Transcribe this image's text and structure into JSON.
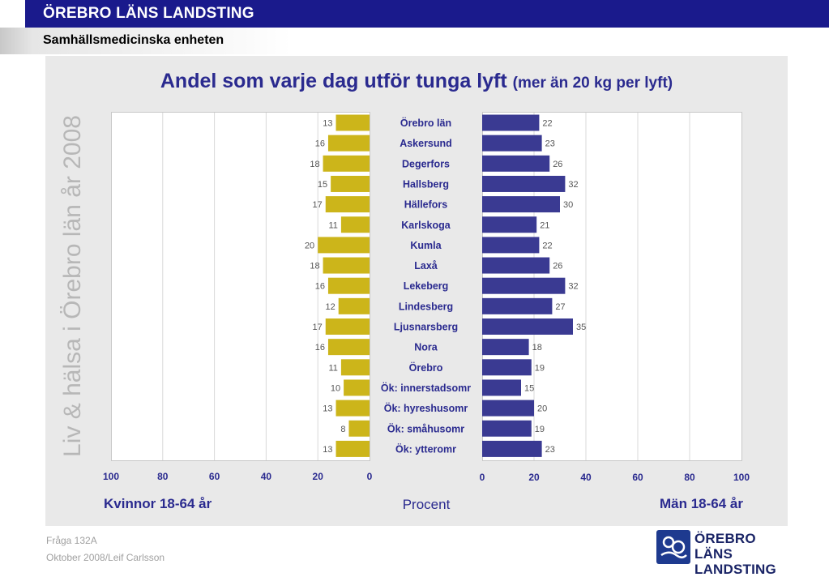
{
  "header": {
    "title": "ÖREBRO LÄNS LANDSTING",
    "subtitle": "Samhällsmedicinska enheten"
  },
  "side_label": "Liv & hälsa i Örebro län år 2008",
  "footer": {
    "question": "Fråga 132A",
    "date_author": "Oktober 2008/Leif Carlsson"
  },
  "logo": {
    "line1": "ÖREBRO LÄNS",
    "line2": "LANDSTING"
  },
  "colors": {
    "women": "#ccb51a",
    "men": "#3a3a92",
    "title": "#2a2a8f"
  },
  "chart_data": {
    "type": "bar",
    "orientation": "horizontal",
    "title": "Andel som varje dag utför tunga lyft",
    "subtitle": "(mer än 20 kg per lyft)",
    "xlabel": "Procent",
    "categories": [
      "Örebro län",
      "Askersund",
      "Degerfors",
      "Hallsberg",
      "Hällefors",
      "Karlskoga",
      "Kumla",
      "Laxå",
      "Lekeberg",
      "Lindesberg",
      "Ljusnarsberg",
      "Nora",
      "Örebro",
      "Ök: innerstadsomr",
      "Ök: hyreshusomr",
      "Ök: småhusomr",
      "Ök: ytteromr"
    ],
    "series": [
      {
        "name": "Kvinnor 18-64 år",
        "values": [
          13,
          16,
          18,
          15,
          17,
          11,
          20,
          18,
          16,
          12,
          17,
          16,
          11,
          10,
          13,
          8,
          13
        ]
      },
      {
        "name": "Män 18-64 år",
        "values": [
          22,
          23,
          26,
          32,
          30,
          21,
          22,
          26,
          32,
          27,
          35,
          18,
          19,
          15,
          20,
          19,
          23
        ]
      }
    ],
    "left_ticks": [
      "100",
      "80",
      "60",
      "40",
      "20",
      "0"
    ],
    "right_ticks": [
      "0",
      "20",
      "40",
      "60",
      "80",
      "100"
    ],
    "xlim": [
      0,
      100
    ],
    "grid": true
  }
}
